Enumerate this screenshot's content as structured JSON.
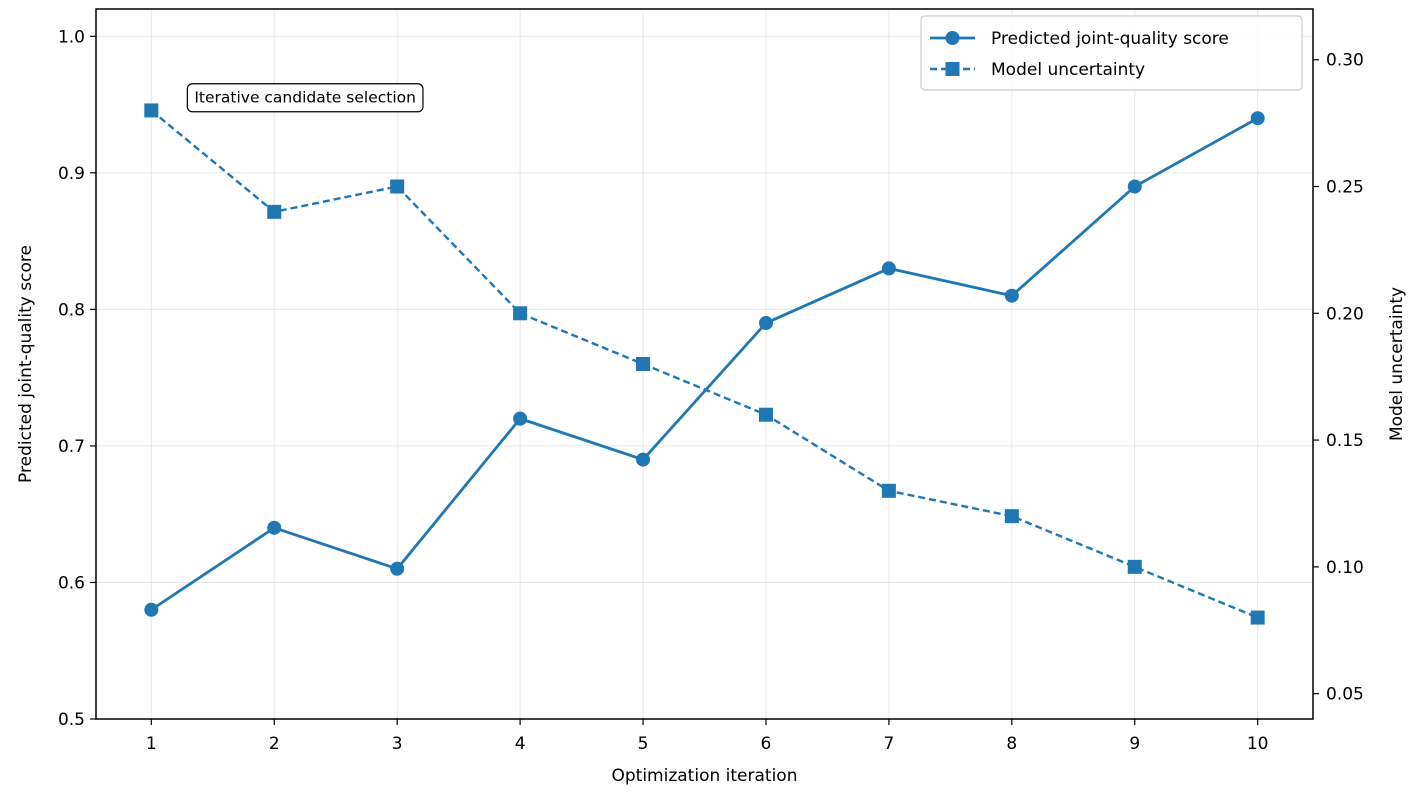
{
  "chart_data": {
    "type": "line",
    "title": "",
    "xlabel": "Optimization iteration",
    "ylabel": "Predicted joint-quality score",
    "y2label": "Model uncertainty",
    "x": [
      1,
      2,
      3,
      4,
      5,
      6,
      7,
      8,
      9,
      10
    ],
    "x_tick_labels": [
      "1",
      "2",
      "3",
      "4",
      "5",
      "6",
      "7",
      "8",
      "9",
      "10"
    ],
    "xlim": [
      0.55,
      10.45
    ],
    "ylim": [
      0.5,
      1.02
    ],
    "y2lim": [
      0.04,
      0.32
    ],
    "y_ticks": [
      0.5,
      0.6,
      0.7,
      0.8,
      0.9,
      1.0
    ],
    "y_tick_labels": [
      "0.5",
      "0.6",
      "0.7",
      "0.8",
      "0.9",
      "1.0"
    ],
    "y2_ticks": [
      0.05,
      0.1,
      0.15,
      0.2,
      0.25,
      0.3
    ],
    "y2_tick_labels": [
      "0.05",
      "0.10",
      "0.15",
      "0.20",
      "0.25",
      "0.30"
    ],
    "grid": true,
    "legend_position": "top-right",
    "annotation": {
      "text": "Iterative candidate selection",
      "x": 1.35,
      "y": 0.955
    },
    "series": [
      {
        "name": "Predicted joint-quality score",
        "axis": "left",
        "style": "solid",
        "marker": "circle",
        "color": "#1f77b4",
        "values": [
          0.58,
          0.64,
          0.61,
          0.72,
          0.69,
          0.79,
          0.83,
          0.81,
          0.89,
          0.94
        ]
      },
      {
        "name": "Model uncertainty",
        "axis": "right",
        "style": "dashed",
        "marker": "square",
        "color": "#1f77b4",
        "values": [
          0.28,
          0.24,
          0.25,
          0.2,
          0.18,
          0.16,
          0.13,
          0.12,
          0.1,
          0.08
        ]
      }
    ]
  }
}
